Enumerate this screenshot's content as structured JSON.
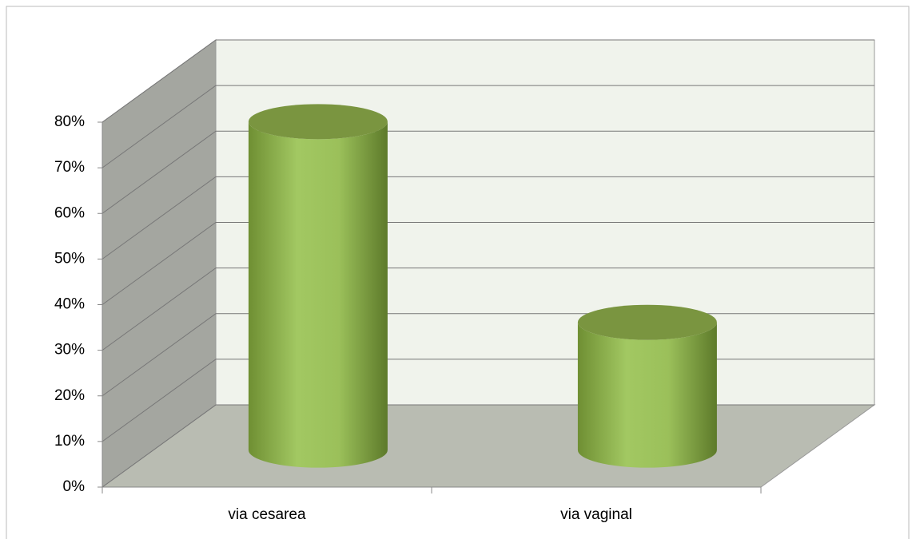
{
  "chart_data": {
    "type": "bar3d",
    "categories": [
      "via cesarea",
      "via vaginal"
    ],
    "values": [
      72,
      28
    ],
    "color": "#9bc05a",
    "ylim": [
      0,
      80
    ],
    "yticks": [
      {
        "value": 0,
        "label": "0%"
      },
      {
        "value": 10,
        "label": "10%"
      },
      {
        "value": 20,
        "label": "20%"
      },
      {
        "value": 30,
        "label": "30%"
      },
      {
        "value": 40,
        "label": "40%"
      },
      {
        "value": 50,
        "label": "50%"
      },
      {
        "value": 60,
        "label": "60%"
      },
      {
        "value": 70,
        "label": "70%"
      },
      {
        "value": 80,
        "label": "80%"
      }
    ],
    "grid": true
  }
}
